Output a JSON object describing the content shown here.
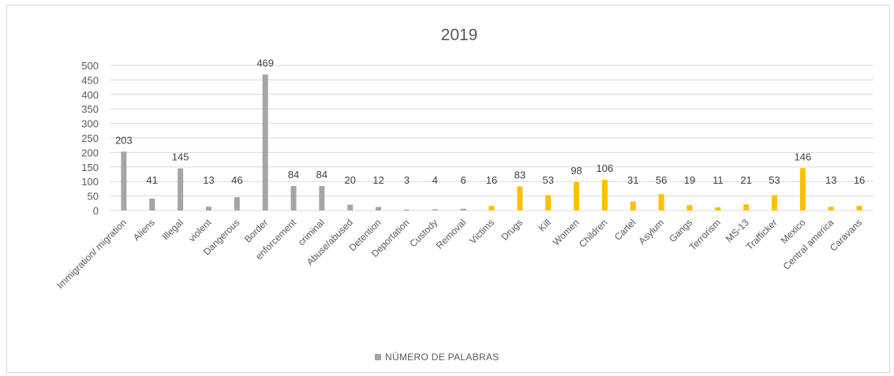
{
  "chart_data": {
    "type": "bar",
    "title": "2019",
    "xlabel": "",
    "ylabel": "",
    "ylim": [
      0,
      500
    ],
    "yticks": [
      0,
      50,
      100,
      150,
      200,
      250,
      300,
      350,
      400,
      450,
      500
    ],
    "grid": true,
    "legend_position": "bottom",
    "series": [
      {
        "name": "NÚMERO DE PALABRAS",
        "color": "#a5a5a5",
        "highlight_color": "#ffc000"
      }
    ],
    "categories": [
      "Immigration/ migration",
      "Aliens",
      "Illegal",
      "violent",
      "Dangerous",
      "Border",
      "enforcement",
      "criminal",
      "Abuse/abused",
      "Detention",
      "Deportation",
      "Custody",
      "Removal",
      "Victims",
      "Drugs",
      "Kill",
      "Women",
      "Children",
      "Cartel",
      "Asylum",
      "Gangs",
      "Terrorism",
      "MS-13",
      "Trafficker",
      "Mexico",
      "Central america",
      "Caravans"
    ],
    "values": [
      203,
      41,
      145,
      13,
      46,
      469,
      84,
      84,
      20,
      12,
      3,
      4,
      6,
      16,
      83,
      53,
      98,
      106,
      31,
      56,
      19,
      11,
      21,
      53,
      146,
      13,
      16
    ],
    "bar_colors": [
      "#a5a5a5",
      "#a5a5a5",
      "#a5a5a5",
      "#a5a5a5",
      "#a5a5a5",
      "#a5a5a5",
      "#a5a5a5",
      "#a5a5a5",
      "#a5a5a5",
      "#a5a5a5",
      "#a5a5a5",
      "#a5a5a5",
      "#a5a5a5",
      "#ffc000",
      "#ffc000",
      "#ffc000",
      "#ffc000",
      "#ffc000",
      "#ffc000",
      "#ffc000",
      "#ffc000",
      "#ffc000",
      "#ffc000",
      "#ffc000",
      "#ffc000",
      "#ffc000",
      "#ffc000"
    ]
  }
}
